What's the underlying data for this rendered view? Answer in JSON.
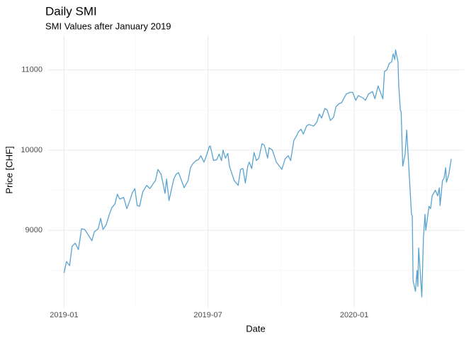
{
  "chart_data": {
    "type": "line",
    "title": "Daily SMI",
    "subtitle": "SMI Values after January 2019",
    "x_label": "Date",
    "y_label": "Price [CHF]",
    "color": "#5aa3cf",
    "grid": true,
    "xlim": [
      -20,
      503
    ],
    "ylim": [
      8030,
      11430
    ],
    "xticks": [
      {
        "value": 0,
        "label": "2019-01"
      },
      {
        "value": 181,
        "label": "2019-07"
      },
      {
        "value": 365,
        "label": "2020-01"
      }
    ],
    "xminor": [
      90,
      273,
      456
    ],
    "yticks": [
      9000,
      10000,
      11000
    ],
    "yminor": [
      8500,
      9500,
      10500
    ],
    "x": [
      0,
      3,
      7,
      10,
      14,
      18,
      22,
      26,
      30,
      35,
      38,
      43,
      46,
      49,
      53,
      57,
      60,
      64,
      67,
      70,
      75,
      79,
      83,
      86,
      89,
      92,
      95,
      99,
      104,
      108,
      112,
      115,
      118,
      122,
      127,
      129,
      132,
      136,
      138,
      141,
      144,
      150,
      151,
      156,
      159,
      162,
      166,
      169,
      172,
      176,
      178,
      183,
      184,
      188,
      192,
      195,
      198,
      200,
      203,
      206,
      208,
      214,
      219,
      222,
      225,
      228,
      231,
      233,
      236,
      239,
      242,
      245,
      249,
      252,
      256,
      258,
      262,
      267,
      274,
      278,
      282,
      285,
      289,
      292,
      295,
      298,
      301,
      305,
      308,
      314,
      318,
      321,
      324,
      328,
      331,
      335,
      339,
      342,
      346,
      349,
      355,
      360,
      363,
      367,
      370,
      376,
      379,
      383,
      388,
      391,
      395,
      398,
      401,
      403,
      406,
      409,
      412,
      414,
      416,
      417,
      420,
      421,
      423,
      424,
      426,
      429,
      431,
      433,
      437,
      438,
      439,
      442,
      444,
      445,
      446,
      450,
      452,
      454,
      455,
      459,
      461,
      463,
      467,
      470,
      472,
      473,
      476,
      478,
      480,
      481,
      484,
      487
    ],
    "values": [
      8470,
      8610,
      8560,
      8800,
      8840,
      8760,
      9020,
      9010,
      8950,
      8870,
      8980,
      9020,
      9150,
      9010,
      9070,
      9200,
      9280,
      9330,
      9450,
      9390,
      9410,
      9270,
      9380,
      9470,
      9520,
      9310,
      9300,
      9480,
      9560,
      9520,
      9580,
      9620,
      9760,
      9700,
      9460,
      9640,
      9370,
      9550,
      9640,
      9700,
      9720,
      9560,
      9530,
      9620,
      9780,
      9830,
      9870,
      9880,
      9930,
      9850,
      9900,
      10050,
      10050,
      9870,
      9880,
      9950,
      9870,
      10000,
      9900,
      9960,
      9800,
      9620,
      9560,
      9760,
      9770,
      9590,
      9800,
      9850,
      9770,
      9970,
      9870,
      9900,
      10080,
      10060,
      9900,
      10030,
      10000,
      9850,
      9760,
      9890,
      9930,
      9870,
      10120,
      10170,
      10230,
      10260,
      10200,
      10300,
      10320,
      10300,
      10350,
      10450,
      10400,
      10520,
      10500,
      10370,
      10410,
      10540,
      10580,
      10590,
      10700,
      10720,
      10720,
      10620,
      10680,
      10650,
      10620,
      10700,
      10730,
      10640,
      10800,
      10720,
      10640,
      10980,
      11000,
      11080,
      11100,
      11200,
      11130,
      11250,
      11100,
      10800,
      10500,
      10480,
      9800,
      9950,
      10250,
      9900,
      9200,
      9180,
      8370,
      8240,
      8500,
      8300,
      8780,
      8170,
      8900,
      9200,
      9000,
      9300,
      9270,
      9430,
      9500,
      9430,
      9530,
      9310,
      9620,
      9650,
      9780,
      9600,
      9700,
      9890
    ]
  }
}
